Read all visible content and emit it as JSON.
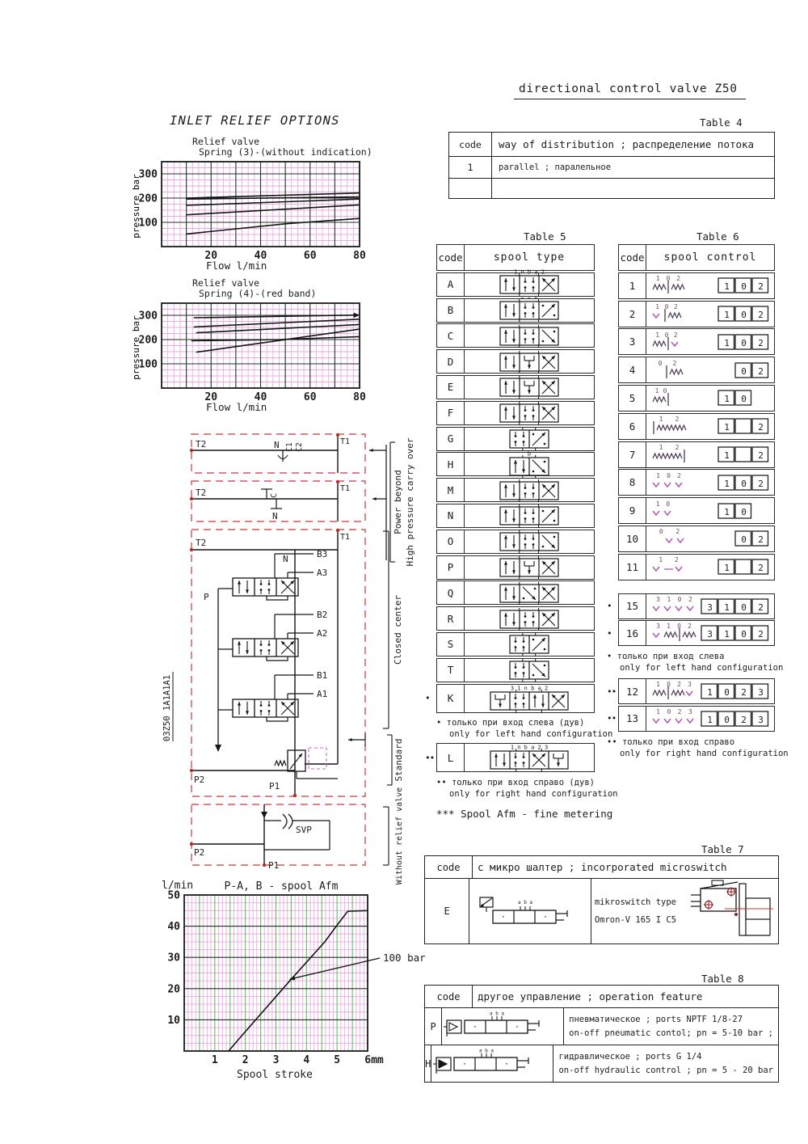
{
  "title": {
    "text": "directional control valve Z50"
  },
  "inlet": {
    "heading": "INLET RELIEF OPTIONS"
  },
  "table4": {
    "label": "Table 4",
    "header": {
      "code": "code",
      "desc": "way of distribution ;  распределение  потока"
    },
    "rows": [
      {
        "code": "1",
        "desc": "parallel ;  паралельное"
      },
      {
        "code": "",
        "desc": ""
      }
    ]
  },
  "chart_data": [
    {
      "id": "relief-spring-3",
      "type": "line",
      "title": "Relief valve",
      "subtitle": "Spring (3)-(without indication)",
      "xlabel": "Flow l/min",
      "ylabel": "pressure bar",
      "xlim": [
        0,
        80
      ],
      "ylim": [
        0,
        350
      ],
      "xticks": [
        20,
        40,
        60,
        80
      ],
      "yticks": [
        100,
        200,
        300
      ],
      "x_major": 10,
      "x_minor": 2.5,
      "y_major": 100,
      "y_minor": 25,
      "grid": true,
      "series": [
        {
          "name": "curve-1",
          "points": [
            [
              10,
              200
            ],
            [
              80,
              221
            ]
          ]
        },
        {
          "name": "curve-2",
          "points": [
            [
              10,
              196
            ],
            [
              80,
              205
            ]
          ]
        },
        {
          "name": "curve-3",
          "points": [
            [
              10,
              170
            ],
            [
              80,
              196
            ]
          ]
        },
        {
          "name": "curve-4",
          "points": [
            [
              10,
              131
            ],
            [
              80,
              172
            ]
          ]
        },
        {
          "name": "curve-5",
          "points": [
            [
              10,
              52
            ],
            [
              50,
              94
            ],
            [
              80,
              116
            ]
          ]
        }
      ]
    },
    {
      "id": "relief-spring-4",
      "type": "line",
      "title": "Relief valve",
      "subtitle": "Spring (4)-(red band)",
      "xlabel": "Flow l/min",
      "ylabel": "pressure bar",
      "xlim": [
        0,
        80
      ],
      "ylim": [
        0,
        350
      ],
      "xticks": [
        20,
        40,
        60,
        80
      ],
      "yticks": [
        100,
        200,
        300
      ],
      "x_major": 10,
      "x_minor": 2.5,
      "y_major": 100,
      "y_minor": 25,
      "grid": true,
      "series": [
        {
          "name": "curve-1",
          "points": [
            [
              13,
              290
            ],
            [
              80,
              301
            ]
          ],
          "arrow_end": true
        },
        {
          "name": "curve-2",
          "points": [
            [
              13,
              252
            ],
            [
              80,
              284
            ]
          ]
        },
        {
          "name": "curve-3",
          "points": [
            [
              14,
              228
            ],
            [
              80,
              262
            ]
          ]
        },
        {
          "name": "curve-4",
          "points": [
            [
              12,
              195
            ],
            [
              48,
              200
            ],
            [
              80,
              212
            ]
          ]
        },
        {
          "name": "curve-5",
          "points": [
            [
              14,
              148
            ],
            [
              48,
              197
            ],
            [
              80,
              243
            ]
          ]
        }
      ]
    },
    {
      "id": "spool-afm-flow",
      "type": "line",
      "title": "P-A, B  -  spool Afm",
      "corner_label": "l/min",
      "xlabel": "Spool stroke",
      "ylabel": "",
      "xlim": [
        0,
        6
      ],
      "ylim": [
        0,
        50
      ],
      "xticks": [
        1,
        2,
        3,
        4,
        5,
        6
      ],
      "xtick_labels": [
        "1",
        "2",
        "3",
        "4",
        "5",
        "6mm"
      ],
      "yticks": [
        10,
        20,
        30,
        40,
        50
      ],
      "x_major": 0.5,
      "x_minor": 0.125,
      "y_major": 10,
      "y_minor": 2.5,
      "grid": true,
      "major_x_color": "#5fbf5f",
      "series": [
        {
          "name": "flow-curve",
          "points": [
            [
              1.45,
              0
            ],
            [
              1.8,
              4
            ],
            [
              3.5,
              23
            ],
            [
              4.6,
              35
            ],
            [
              5.05,
              41
            ],
            [
              5.35,
              44.8
            ],
            [
              6,
              45
            ]
          ]
        }
      ],
      "annotation": {
        "label": "100 bar",
        "points": [
          [
            3.45,
            23
          ],
          [
            6,
            28.5
          ]
        ]
      }
    }
  ],
  "schematic": {
    "model": "03Z50 1A1A1A1",
    "box1": {
      "t2": "T2",
      "n": "N",
      "c1": "C1",
      "c2": "C2",
      "t1": "T1"
    },
    "box2": {
      "t2": "T2",
      "c": "C",
      "n": "N",
      "t1": "T1"
    },
    "box3": {
      "t2": "T2",
      "n": "N",
      "t1": "T1",
      "p": "P",
      "b3": "B3",
      "a3": "A3",
      "b2": "B2",
      "a2": "A2",
      "b1": "B1",
      "a1": "A1",
      "p2": "P2",
      "p1": "P1"
    },
    "box4": {
      "p2": "P2",
      "p1": "P1",
      "svp": "SVP"
    },
    "side": {
      "power": "Power beyond",
      "hp": "High pressure carry over",
      "closed": "Closed center",
      "standard": "Standard",
      "without": "Without relief valve"
    }
  },
  "table5": {
    "label": "Table 5",
    "header": {
      "code": "code",
      "type": "spool type"
    },
    "rows": [
      {
        "code": "A",
        "cells": [
          "arrows",
          "closed",
          "cross"
        ],
        "top": "1   n b a   2",
        "bottom": "n p t"
      },
      {
        "code": "B",
        "cells": [
          "arrows",
          "closed",
          "diag"
        ]
      },
      {
        "code": "C",
        "cells": [
          "arrows",
          "closed",
          "diagd"
        ]
      },
      {
        "code": "D",
        "cells": [
          "arrows",
          "float",
          "cross"
        ]
      },
      {
        "code": "E",
        "cells": [
          "arrows",
          "float",
          "cross"
        ]
      },
      {
        "code": "F",
        "cells": [
          "arrows",
          "closed",
          "cross"
        ]
      },
      {
        "code": "G",
        "cells": [
          "closed",
          "diag"
        ]
      },
      {
        "code": "H",
        "cells": [
          "arrows",
          "diagd"
        ],
        "top": "b"
      },
      {
        "code": "M",
        "cells": [
          "arrows",
          "closed",
          "cross"
        ]
      },
      {
        "code": "N",
        "cells": [
          "arrows",
          "closed",
          "diag"
        ]
      },
      {
        "code": "O",
        "cells": [
          "arrows",
          "closed",
          "diagd"
        ]
      },
      {
        "code": "P",
        "cells": [
          "arrows",
          "float",
          "cross"
        ]
      },
      {
        "code": "Q",
        "cells": [
          "arrows",
          "diagd",
          "cross"
        ]
      },
      {
        "code": "R",
        "cells": [
          "arrows",
          "closed",
          "cross"
        ]
      },
      {
        "code": "S",
        "cells": [
          "closed",
          "diag"
        ]
      },
      {
        "code": "T",
        "cells": [
          "closed",
          "diagd"
        ]
      }
    ],
    "row_k": {
      "code": "K",
      "marker": "•",
      "cells": [
        "float",
        "closed",
        "arrows",
        "cross"
      ],
      "top": "3    1    n b a    2"
    },
    "note_k": {
      "marker": "•",
      "ru": "только при вход слева (дув)",
      "en": "only for left hand configuration"
    },
    "row_l": {
      "code": "L",
      "marker": "••",
      "cells": [
        "arrows",
        "closed",
        "cross",
        "float"
      ],
      "top": "1    n b a    2    3"
    },
    "note_l": {
      "marker": "••",
      "ru": "только при вход справо (дув)",
      "en": "only for right hand configuration"
    },
    "note_afm": "***  Spool Afm  -  fine metering"
  },
  "table6": {
    "label": "Table 6",
    "header": {
      "code": "code",
      "type": "spool control"
    },
    "rows": [
      {
        "code": "1",
        "labels": "1 0 2",
        "sym": [
          "zig",
          "bar",
          "zig"
        ],
        "slots": [
          "1",
          "0",
          "2"
        ]
      },
      {
        "code": "2",
        "labels": "1 0 2",
        "sym": [
          "det",
          "bar",
          "zig"
        ],
        "slots": [
          "1",
          "0",
          "2"
        ]
      },
      {
        "code": "3",
        "labels": "1 0 2",
        "sym": [
          "zig",
          "bar",
          "det"
        ],
        "slots": [
          "1",
          "0",
          "2"
        ]
      },
      {
        "code": "4",
        "labels": "0 2",
        "sym": [
          "gap",
          "bar",
          "zig"
        ],
        "slots": [
          null,
          "0",
          "2"
        ]
      },
      {
        "code": "5",
        "labels": "1 0",
        "sym": [
          "zig",
          "bar"
        ],
        "slots": [
          "1",
          "0",
          null
        ]
      },
      {
        "code": "6",
        "labels": "1 2",
        "sym": [
          "bar",
          "zigzig"
        ],
        "slots": [
          "1",
          "",
          "2"
        ]
      },
      {
        "code": "7",
        "labels": "1 2",
        "sym": [
          "zigzig",
          "bar"
        ],
        "slots": [
          "1",
          "",
          "2"
        ]
      },
      {
        "code": "8",
        "labels": "1 0 2",
        "sym": [
          "det",
          "det",
          "det"
        ],
        "slots": [
          "1",
          "0",
          "2"
        ]
      },
      {
        "code": "9",
        "labels": "1 0",
        "sym": [
          "det",
          "det"
        ],
        "slots": [
          "1",
          "0",
          null
        ]
      },
      {
        "code": "10",
        "labels": "0 2",
        "sym": [
          "gap",
          "det",
          "det"
        ],
        "slots": [
          null,
          "0",
          "2"
        ]
      },
      {
        "code": "11",
        "labels": "1 2",
        "sym": [
          "det",
          "dash",
          "det"
        ],
        "slots": [
          "1",
          "",
          "2"
        ]
      }
    ],
    "block_left": {
      "marker": "•",
      "rows": [
        {
          "code": "15",
          "labels": "3 1 0 2",
          "sym": [
            "det",
            "det",
            "det",
            "det"
          ],
          "slots": [
            "3",
            "1",
            "0",
            "2"
          ]
        },
        {
          "code": "16",
          "labels": "3 1 0 2",
          "sym": [
            "det",
            "zig",
            "bar",
            "zig"
          ],
          "slots": [
            "3",
            "1",
            "0",
            "2"
          ]
        }
      ],
      "note": {
        "marker": "•",
        "ru": "только при вход слева",
        "en": "only for left hand configuration"
      }
    },
    "block_right": {
      "marker": "••",
      "rows": [
        {
          "code": "12",
          "labels": "1 0 2 3",
          "sym": [
            "zig",
            "bar",
            "zig",
            "det"
          ],
          "slots": [
            "1",
            "0",
            "2",
            "3"
          ]
        },
        {
          "code": "13",
          "labels": "1 0 2 3",
          "sym": [
            "det",
            "det",
            "det",
            "det"
          ],
          "slots": [
            "1",
            "0",
            "2",
            "3"
          ]
        }
      ],
      "note": {
        "marker": "••",
        "ru": "только при вход справо",
        "en": "only for right hand configuration"
      }
    }
  },
  "table7": {
    "label": "Table 7",
    "header": {
      "code": "code",
      "desc": "с микро шалтер ;  incorporated microswitch"
    },
    "row": {
      "code": "E",
      "text1": "mikroswitch type",
      "text2": "Omron-V 165 I C5"
    }
  },
  "table8": {
    "label": "Table 8",
    "header": {
      "code": "code",
      "desc": "другое управление ;  operation feature"
    },
    "rows": [
      {
        "code": "P",
        "line1": "пневматическое ; ports NPTF 1/8-27",
        "line2": "on-off pneumatic contol;  pn = 5-10 bar ;"
      },
      {
        "code": "H",
        "line1": "гидравлическое ;   ports G 1/4",
        "line2": "on-off hydraulic control ; pn = 5 - 20 bar"
      }
    ]
  },
  "colors": {
    "line": "#141414",
    "red": "#c23b36",
    "red_dot": "#b23327",
    "grid_minor": "#eaa9e2",
    "grid_major": "#2b2b2b",
    "grid_green": "#5fbf5f",
    "magenta_dash": "#c468c4",
    "detent": "#b05ab0",
    "spring": "#4a3a52"
  }
}
